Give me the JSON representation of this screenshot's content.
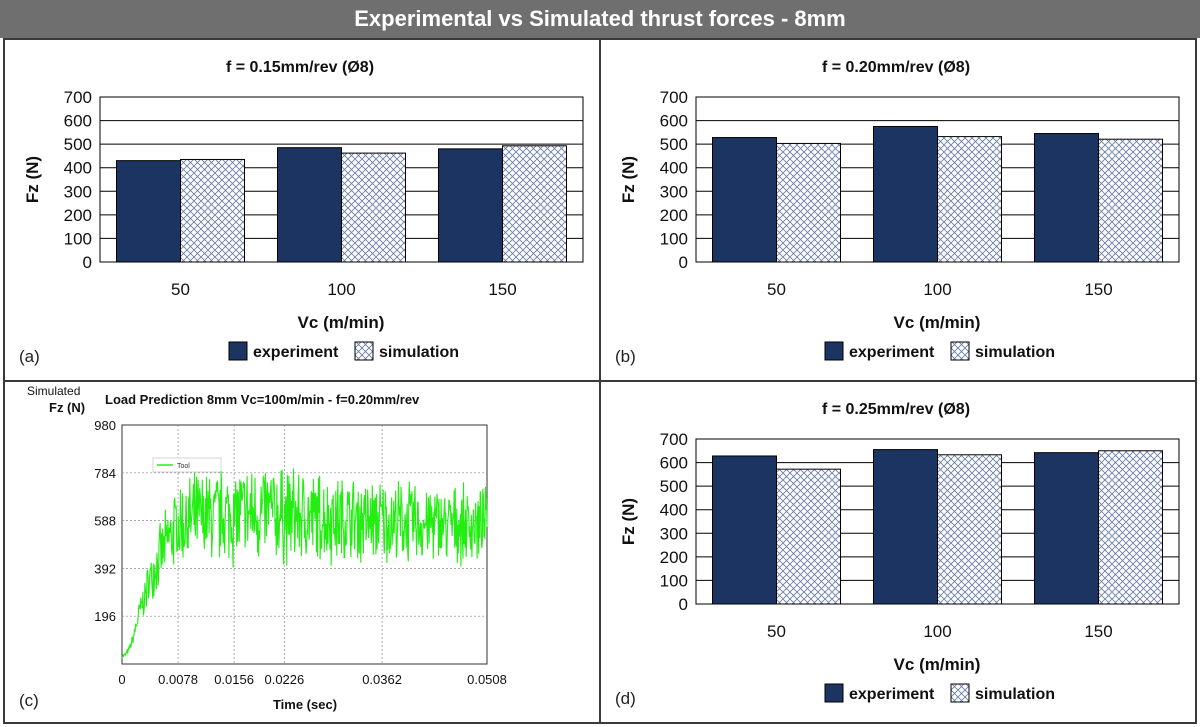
{
  "banner_title": "Experimental vs Simulated thrust forces - 8mm",
  "colors": {
    "experiment": "#1c3461",
    "simulation_line": "#6b7fa8",
    "load_line": "#22ee11",
    "banner": "#6f6f6f"
  },
  "chart_data": [
    {
      "id": "a",
      "panel_label": "(a)",
      "type": "bar",
      "title": "f = 0.15mm/rev (Ø8)",
      "xlabel": "Vc (m/min)",
      "ylabel": "Fz (N)",
      "categories": [
        "50",
        "100",
        "150"
      ],
      "series": [
        {
          "name": "experiment",
          "values": [
            430,
            485,
            480
          ]
        },
        {
          "name": "simulation",
          "values": [
            435,
            462,
            493
          ]
        }
      ],
      "ylim": [
        0,
        700
      ],
      "yticks": [
        0,
        100,
        200,
        300,
        400,
        500,
        600,
        700
      ],
      "grid": true,
      "legend": "bottom"
    },
    {
      "id": "b",
      "panel_label": "(b)",
      "type": "bar",
      "title": "f = 0.20mm/rev (Ø8)",
      "xlabel": "Vc (m/min)",
      "ylabel": "Fz (N)",
      "categories": [
        "50",
        "100",
        "150"
      ],
      "series": [
        {
          "name": "experiment",
          "values": [
            528,
            575,
            545
          ]
        },
        {
          "name": "simulation",
          "values": [
            503,
            532,
            521
          ]
        }
      ],
      "ylim": [
        0,
        700
      ],
      "yticks": [
        0,
        100,
        200,
        300,
        400,
        500,
        600,
        700
      ],
      "grid": true,
      "legend": "bottom"
    },
    {
      "id": "c",
      "panel_label": "(c)",
      "type": "line",
      "title": "Load Prediction 8mm  Vc=100m/min - f=0.20mm/rev",
      "ylabel_line1": "Simulated",
      "ylabel": "Fz (N)",
      "xlabel": "Time (sec)",
      "legend_entry": "Tool",
      "xlim": [
        0,
        0.0508
      ],
      "ylim": [
        0,
        980
      ],
      "xticks": [
        "0",
        "0.0078",
        "0.0156",
        "0.0226",
        "0.0362",
        "0.0508"
      ],
      "yticks": [
        "196",
        "392",
        "588",
        "784",
        "980"
      ],
      "series": [
        {
          "name": "Tool",
          "x": [
            0,
            0.0005,
            0.001,
            0.0015,
            0.002,
            0.0025,
            0.003,
            0.0035,
            0.004,
            0.0045,
            0.005,
            0.0055,
            0.006,
            0.0065,
            0.007,
            0.0075,
            0.008,
            0.009,
            0.01,
            0.012,
            0.014,
            0.016,
            0.018,
            0.02,
            0.022,
            0.024,
            0.026,
            0.028,
            0.03,
            0.032,
            0.034,
            0.036,
            0.038,
            0.04,
            0.042,
            0.044,
            0.046,
            0.048,
            0.0508
          ],
          "y": [
            30,
            40,
            60,
            100,
            160,
            220,
            260,
            310,
            360,
            390,
            420,
            460,
            480,
            510,
            540,
            560,
            570,
            580,
            590,
            600,
            605,
            610,
            615,
            620,
            612,
            605,
            600,
            598,
            595,
            590,
            588,
            585,
            582,
            580,
            578,
            575,
            572,
            570,
            568
          ],
          "amplitude": [
            5,
            10,
            15,
            25,
            40,
            55,
            70,
            80,
            90,
            100,
            110,
            120,
            130,
            140,
            150,
            160,
            170,
            175,
            180,
            185,
            190,
            195,
            200,
            200,
            195,
            190,
            185,
            180,
            175,
            170,
            170,
            165,
            160,
            160,
            155,
            150,
            150,
            145,
            140
          ]
        }
      ]
    },
    {
      "id": "d",
      "panel_label": "(d)",
      "type": "bar",
      "title": "f = 0.25mm/rev (Ø8)",
      "xlabel": "Vc (m/min)",
      "ylabel": "Fz (N)",
      "categories": [
        "50",
        "100",
        "150"
      ],
      "series": [
        {
          "name": "experiment",
          "values": [
            628,
            655,
            642
          ]
        },
        {
          "name": "simulation",
          "values": [
            572,
            633,
            650
          ]
        }
      ],
      "ylim": [
        0,
        700
      ],
      "yticks": [
        0,
        100,
        200,
        300,
        400,
        500,
        600,
        700
      ],
      "grid": true,
      "legend": "bottom"
    }
  ]
}
